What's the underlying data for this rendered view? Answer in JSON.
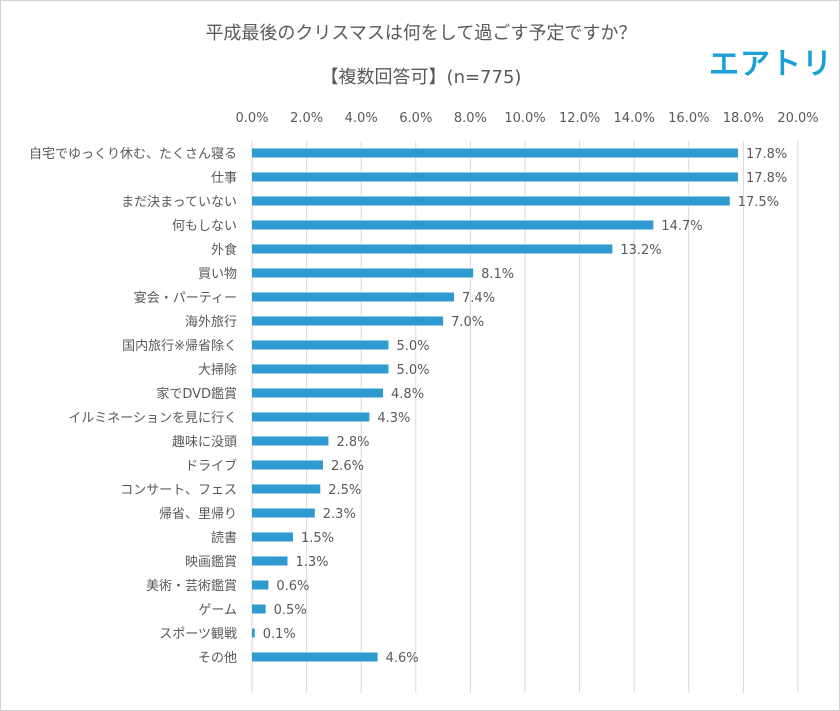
{
  "logo_text": "エアトリ",
  "chart_data": {
    "type": "bar",
    "orientation": "horizontal",
    "title": "平成最後のクリスマスは何をして過ごす予定ですか？",
    "subtitle": "【複数回答可】(n=775)",
    "xlabel": "",
    "ylabel": "",
    "xlim": [
      0,
      20
    ],
    "x_ticks": [
      "0.0%",
      "2.0%",
      "4.0%",
      "6.0%",
      "8.0%",
      "10.0%",
      "12.0%",
      "14.0%",
      "16.0%",
      "18.0%",
      "20.0%"
    ],
    "axis_position": "top",
    "grid": true,
    "bar_color": "#2E9AD0",
    "categories": [
      "自宅でゆっくり休む、たくさん寝る",
      "仕事",
      "まだ決まっていない",
      "何もしない",
      "外食",
      "買い物",
      "宴会・パーティー",
      "海外旅行",
      "国内旅行※帰省除く",
      "大掃除",
      "家でDVD鑑賞",
      "イルミネーションを見に行く",
      "趣味に没頭",
      "ドライブ",
      "コンサート、フェス",
      "帰省、里帰り",
      "読書",
      "映画鑑賞",
      "美術・芸術鑑賞",
      "ゲーム",
      "スポーツ観戦",
      "その他"
    ],
    "values": [
      17.8,
      17.8,
      17.5,
      14.7,
      13.2,
      8.1,
      7.4,
      7.0,
      5.0,
      5.0,
      4.8,
      4.3,
      2.8,
      2.6,
      2.5,
      2.3,
      1.5,
      1.3,
      0.6,
      0.5,
      0.1,
      4.6
    ],
    "data_labels": [
      "17.8%",
      "17.8%",
      "17.5%",
      "14.7%",
      "13.2%",
      "8.1%",
      "7.4%",
      "7.0%",
      "5.0%",
      "5.0%",
      "4.8%",
      "4.3%",
      "2.8%",
      "2.6%",
      "2.5%",
      "2.3%",
      "1.5%",
      "1.3%",
      "0.6%",
      "0.5%",
      "0.1%",
      "4.6%"
    ]
  }
}
